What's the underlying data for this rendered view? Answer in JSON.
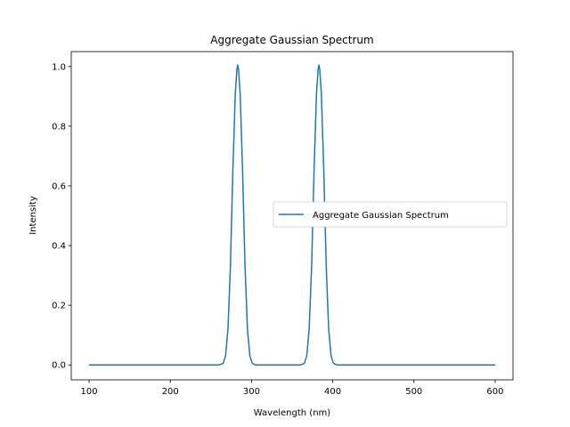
{
  "chart_data": {
    "type": "line",
    "title": "Aggregate Gaussian Spectrum",
    "xlabel": "Wavelength (nm)",
    "ylabel": "Intensity",
    "xlim": [
      78,
      622
    ],
    "ylim": [
      -0.05,
      1.05
    ],
    "xticks": [
      100,
      200,
      300,
      400,
      500,
      600
    ],
    "yticks": [
      0.0,
      0.2,
      0.4,
      0.6,
      0.8,
      1.0
    ],
    "xtick_labels": [
      "100",
      "200",
      "300",
      "400",
      "500",
      "600"
    ],
    "ytick_labels": [
      "0.0",
      "0.2",
      "0.4",
      "0.6",
      "0.8",
      "1.0"
    ],
    "grid": false,
    "legend": {
      "position": "center-right",
      "entries": [
        "Aggregate Gaussian Spectrum"
      ]
    },
    "series": [
      {
        "name": "Aggregate Gaussian Spectrum",
        "color": "#1f77b4",
        "x": [
          100,
          260,
          265,
          268,
          271,
          274,
          277,
          280,
          282,
          283,
          284,
          286,
          289,
          292,
          295,
          298,
          301,
          305,
          360,
          365,
          368,
          371,
          374,
          377,
          380,
          382,
          383,
          384,
          386,
          389,
          392,
          395,
          398,
          401,
          405,
          600
        ],
        "y": [
          0.0,
          0.0,
          0.005,
          0.03,
          0.12,
          0.33,
          0.65,
          0.91,
          0.99,
          1.005,
          0.99,
          0.91,
          0.65,
          0.33,
          0.12,
          0.03,
          0.005,
          0.0,
          0.0,
          0.005,
          0.03,
          0.12,
          0.33,
          0.65,
          0.91,
          0.99,
          1.005,
          0.99,
          0.91,
          0.65,
          0.33,
          0.12,
          0.03,
          0.005,
          0.0,
          0.0
        ]
      }
    ]
  }
}
